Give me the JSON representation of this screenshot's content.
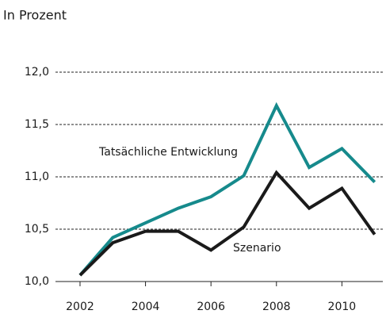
{
  "chart_data": {
    "type": "line",
    "y_label": "In Prozent",
    "x": [
      2002,
      2003,
      2004,
      2005,
      2006,
      2007,
      2008,
      2009,
      2010,
      2011
    ],
    "series": [
      {
        "name": "Tatsächliche Entwicklung",
        "color": "#168a8c",
        "values": [
          10.06,
          10.42,
          10.56,
          10.7,
          10.81,
          11.01,
          11.68,
          11.09,
          11.27,
          10.95
        ]
      },
      {
        "name": "Szenario",
        "color": "#1a1a1a",
        "values": [
          10.06,
          10.37,
          10.48,
          10.48,
          10.3,
          10.52,
          11.04,
          10.7,
          10.89,
          10.45
        ]
      }
    ],
    "xlim": [
      2001.25,
      2011.25
    ],
    "xticks": [
      2002,
      2004,
      2006,
      2008,
      2010
    ],
    "ylim": [
      10,
      12
    ],
    "yticks": [
      {
        "value": 10,
        "label": "10,0"
      },
      {
        "value": 10.5,
        "label": "10,5"
      },
      {
        "value": 11,
        "label": "11,0"
      },
      {
        "value": 11.5,
        "label": "11,5"
      },
      {
        "value": 12,
        "label": "12,0"
      }
    ],
    "grid": true
  }
}
